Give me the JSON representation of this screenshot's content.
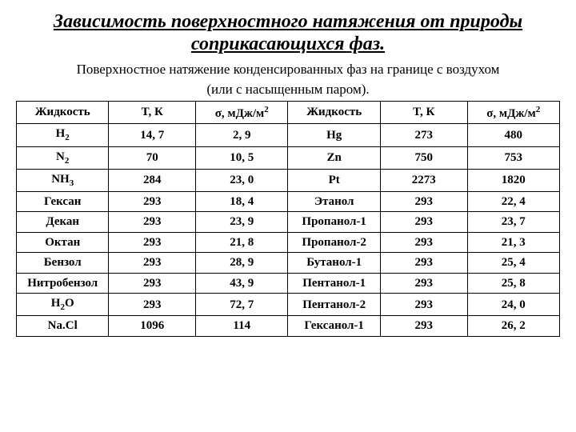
{
  "title": "Зависимость поверхностного натяжения от природы соприкасающихся фаз.",
  "subtitle_l1": "Поверхностное натяжение конденсированных фаз на границе с воздухом",
  "subtitle_l2": "(или с насыщенным паром).",
  "headers": {
    "liquid": "Жидкость",
    "temp": "T, К",
    "sigma_prefix": "σ, мДж/м",
    "sigma_sup": "2"
  },
  "rows": [
    {
      "l1": "H",
      "l1sub": "2",
      "t1": "14, 7",
      "s1": "2, 9",
      "l2": "Hg",
      "t2": "273",
      "s2": "480"
    },
    {
      "l1": "N",
      "l1sub": "2",
      "t1": "70",
      "s1": "10, 5",
      "l2": "Zn",
      "t2": "750",
      "s2": "753"
    },
    {
      "l1": "NH",
      "l1sub": "3",
      "t1": "284",
      "s1": "23, 0",
      "l2": "Pt",
      "t2": "2273",
      "s2": "1820"
    },
    {
      "l1": "Гексан",
      "t1": "293",
      "s1": "18, 4",
      "l2": "Этанол",
      "t2": "293",
      "s2": "22, 4"
    },
    {
      "l1": "Декан",
      "t1": "293",
      "s1": "23, 9",
      "l2": "Пропанол-1",
      "t2": "293",
      "s2": "23, 7"
    },
    {
      "l1": "Октан",
      "t1": "293",
      "s1": "21, 8",
      "l2": "Пропанол-2",
      "t2": "293",
      "s2": "21, 3"
    },
    {
      "l1": "Бензол",
      "t1": "293",
      "s1": "28, 9",
      "l2": "Бутанол-1",
      "t2": "293",
      "s2": "25, 4"
    },
    {
      "l1": "Нитробензол",
      "t1": "293",
      "s1": "43, 9",
      "l2": "Пентанол-1",
      "t2": "293",
      "s2": "25, 8"
    },
    {
      "l1": "H",
      "l1sub": "2",
      "l1suffix": "O",
      "t1": "293",
      "s1": "72, 7",
      "l2": "Пентанол-2",
      "t2": "293",
      "s2": "24, 0"
    },
    {
      "l1": "Na.Cl",
      "t1": "1096",
      "s1": "114",
      "l2": "Гексанол-1",
      "t2": "293",
      "s2": "26, 2"
    }
  ],
  "style": {
    "background_color": "#ffffff",
    "text_color": "#000000",
    "border_color": "#000000",
    "title_fontsize": 24,
    "subtitle_fontsize": 17,
    "table_fontsize": 15,
    "font_family": "Times New Roman"
  }
}
